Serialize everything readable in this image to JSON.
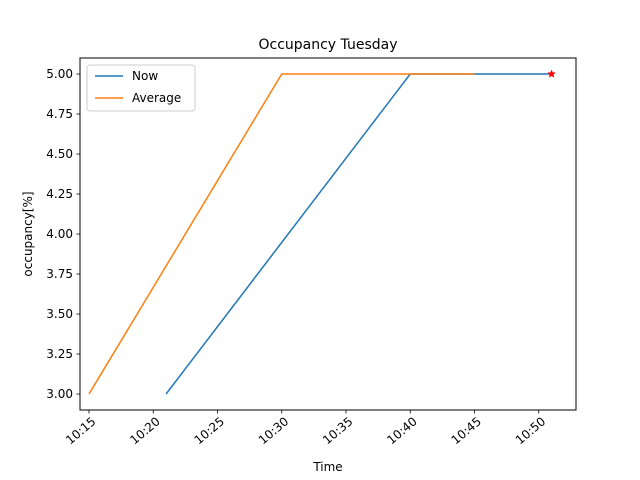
{
  "chart_data": {
    "type": "line",
    "title": "Occupancy Tuesday",
    "xlabel": "Time",
    "ylabel": "occupancy[%]",
    "x_ticks": [
      "10:15",
      "10:20",
      "10:25",
      "10:30",
      "10:35",
      "10:40",
      "10:45",
      "10:50"
    ],
    "x_range": [
      "10:14:18",
      "10:52:54"
    ],
    "ylim": [
      2.9,
      5.1
    ],
    "y_ticks": [
      3.0,
      3.25,
      3.5,
      3.75,
      4.0,
      4.25,
      4.5,
      4.75,
      5.0
    ],
    "y_tick_labels": [
      "3.00",
      "3.25",
      "3.50",
      "3.75",
      "4.00",
      "4.25",
      "4.50",
      "4.75",
      "5.00"
    ],
    "grid": false,
    "legend_position": "upper-left",
    "series": [
      {
        "name": "Now",
        "color": "#1f77b4",
        "points": [
          [
            "10:21",
            3.0
          ],
          [
            "10:40",
            5.0
          ],
          [
            "10:51",
            5.0
          ]
        ]
      },
      {
        "name": "Average",
        "color": "#ff7f0e",
        "points": [
          [
            "10:15",
            3.0
          ],
          [
            "10:30",
            5.0
          ],
          [
            "10:45",
            5.0
          ]
        ]
      }
    ],
    "markers": [
      {
        "x": "10:51",
        "y": 5.0,
        "shape": "star",
        "color": "#ff0000"
      }
    ]
  }
}
